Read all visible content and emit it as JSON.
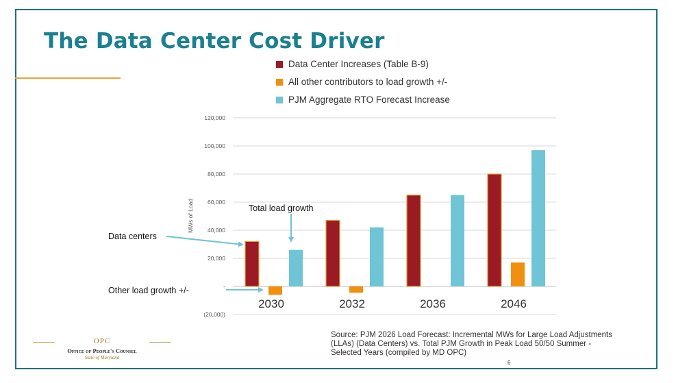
{
  "slide": {
    "title": "The Data Center Cost Driver",
    "source": "Source: PJM 2026 Load Forecast: Incremental MWs for Large Load Adjustments (LLAs) (Data Centers) vs. Total PJM Growth in Peak Load 50/50 Summer - Selected Years (compiled by MD OPC)",
    "page_number": "6",
    "accent_color": "#1a8090",
    "logo": {
      "abbr": "OPC",
      "name": "Office of People's Counsel",
      "state": "State of Maryland"
    }
  },
  "chart_data": {
    "type": "bar",
    "ylabel": "MWs of Load",
    "ylim": [
      -20000,
      120000
    ],
    "yticks": [
      {
        "value": 120000,
        "label": "120,000"
      },
      {
        "value": 100000,
        "label": "100,000"
      },
      {
        "value": 80000,
        "label": "80,000"
      },
      {
        "value": 60000,
        "label": "60,000"
      },
      {
        "value": 40000,
        "label": "40,000"
      },
      {
        "value": 20000,
        "label": "20,000"
      },
      {
        "value": 0,
        "label": "-"
      },
      {
        "value": -20000,
        "label": "(20,000)"
      }
    ],
    "grid": true,
    "legend_position": "top",
    "categories": [
      "2030",
      "2032",
      "2036",
      "2046"
    ],
    "series": [
      {
        "name": "Data Center Increases (Table B-9)",
        "color": "#9b1b24",
        "values": [
          32000,
          47000,
          65000,
          80000
        ]
      },
      {
        "name": "All other contributors to load growth +/-",
        "color": "#f0900e",
        "values": [
          -6000,
          -4500,
          0,
          17000
        ]
      },
      {
        "name": "PJM Aggregate RTO Forecast Increase",
        "color": "#6fc4d6",
        "values": [
          26000,
          42000,
          65000,
          97000
        ]
      }
    ],
    "annotations": [
      {
        "id": "data-centers",
        "text": "Data centers"
      },
      {
        "id": "total-load-growth",
        "text": "Total load growth"
      },
      {
        "id": "other-load-growth",
        "text": "Other load growth +/-"
      }
    ]
  }
}
